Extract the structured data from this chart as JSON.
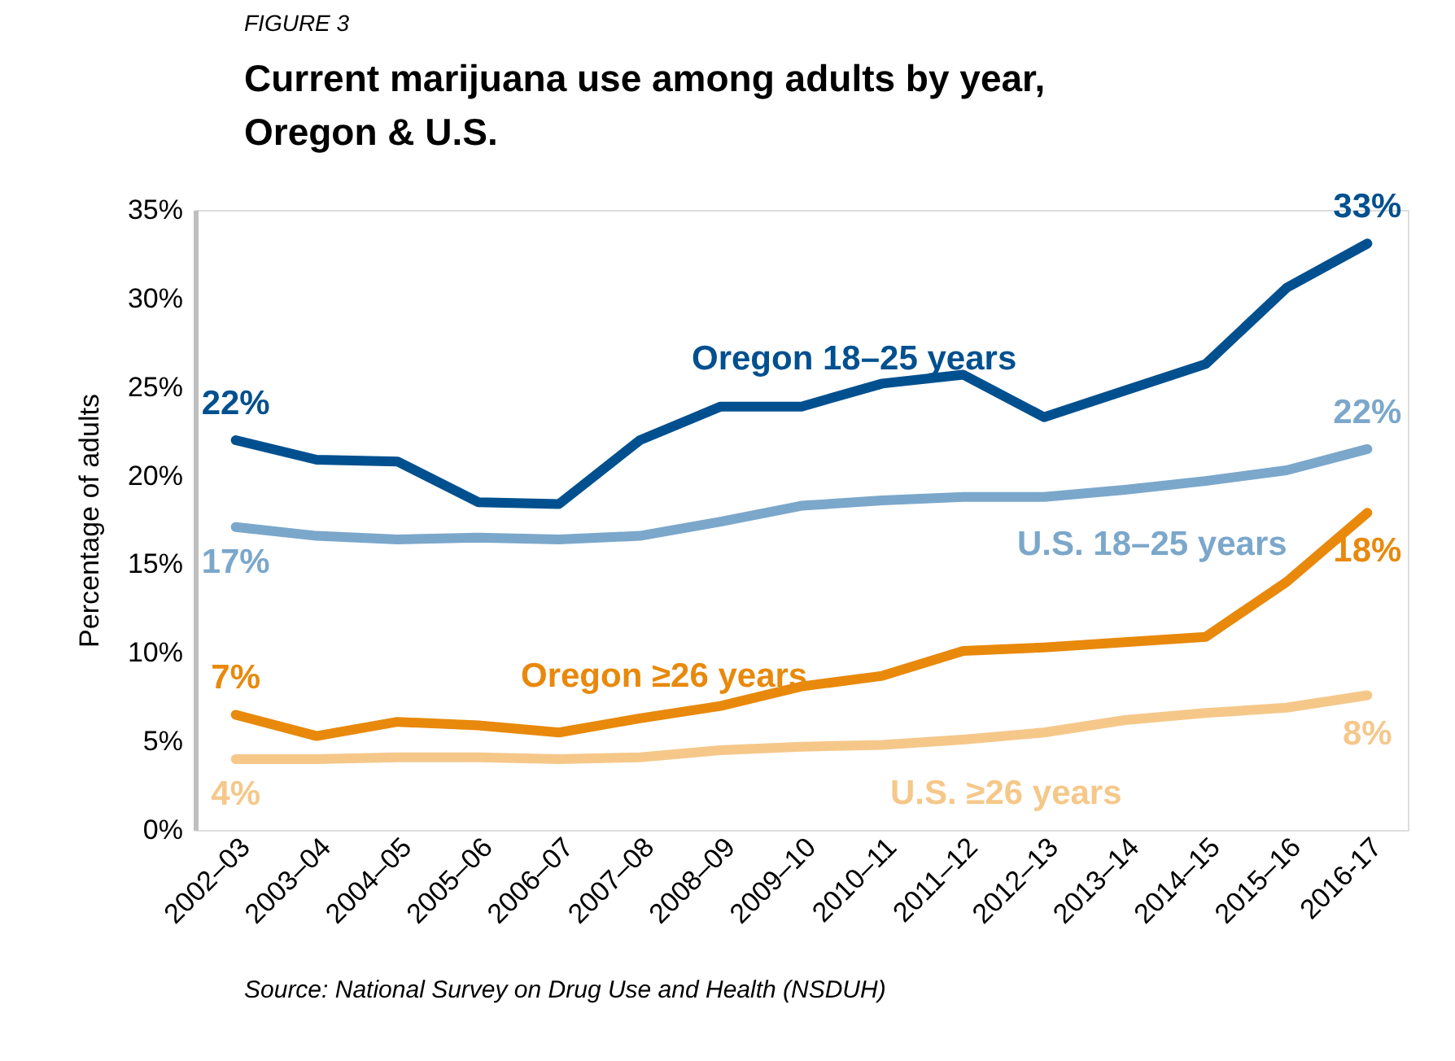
{
  "chart_data": {
    "type": "line",
    "title": [
      "Current marijuana use among adults by year,",
      "Oregon & U.S."
    ],
    "ylabel": "Percentage of adults",
    "categories": [
      "2002–03",
      "2003–04",
      "2004–05",
      "2005–06",
      "2006–07",
      "2007–08",
      "2008–09",
      "2009–10",
      "2010–11",
      "2011–12",
      "2012–13",
      "2013–14",
      "2014–15",
      "2015–16",
      "2016-17"
    ],
    "series": [
      {
        "name": "Oregon 18–25 years",
        "color": "#00508f",
        "values": [
          22.0,
          20.9,
          20.8,
          18.5,
          18.4,
          22.0,
          23.9,
          23.9,
          25.2,
          25.7,
          23.3,
          24.8,
          26.3,
          30.6,
          33.1
        ],
        "value_labels": [
          "22%",
          null,
          null,
          null,
          null,
          null,
          null,
          null,
          null,
          null,
          null,
          null,
          null,
          null,
          "33%"
        ]
      },
      {
        "name": "U.S. 18–25 years",
        "color": "#7ba7cb",
        "values": [
          17.1,
          16.6,
          16.4,
          16.5,
          16.4,
          16.6,
          17.4,
          18.3,
          18.6,
          18.8,
          18.8,
          19.2,
          19.7,
          20.3,
          21.5
        ],
        "value_labels": [
          "17%",
          null,
          null,
          null,
          null,
          null,
          null,
          null,
          null,
          null,
          null,
          null,
          null,
          null,
          "22%"
        ]
      },
      {
        "name": "Oregon ≥26 years",
        "color": "#e8890c",
        "values": [
          6.5,
          5.3,
          6.1,
          5.9,
          5.5,
          6.3,
          7.0,
          8.1,
          8.7,
          10.1,
          10.3,
          10.6,
          10.9,
          14.0,
          17.9
        ],
        "value_labels": [
          "7%",
          null,
          null,
          null,
          null,
          null,
          null,
          null,
          null,
          null,
          null,
          null,
          null,
          null,
          "18%"
        ]
      },
      {
        "name": "U.S. ≥26 years",
        "color": "#f5c88a",
        "values": [
          4.0,
          4.0,
          4.1,
          4.1,
          4.0,
          4.1,
          4.5,
          4.7,
          4.8,
          5.1,
          5.5,
          6.2,
          6.6,
          6.9,
          7.6
        ],
        "value_labels": [
          "4%",
          null,
          null,
          null,
          null,
          null,
          null,
          null,
          null,
          null,
          null,
          null,
          null,
          null,
          "8%"
        ]
      }
    ],
    "ylim": [
      0,
      35
    ],
    "yticks": [
      {
        "value": 0,
        "label": "0%"
      },
      {
        "value": 5,
        "label": "5%"
      },
      {
        "value": 10,
        "label": "10%"
      },
      {
        "value": 15,
        "label": "15%"
      },
      {
        "value": 20,
        "label": "20%"
      },
      {
        "value": 25,
        "label": "25%"
      },
      {
        "value": 30,
        "label": "30%"
      },
      {
        "value": 35,
        "label": "35%"
      }
    ],
    "grid": false,
    "legend": false,
    "marker": "none",
    "line_style": "solid",
    "annotations": [
      "FIGURE 3",
      "Source: National Survey on Drug Use and Health (NSDUH)"
    ]
  }
}
